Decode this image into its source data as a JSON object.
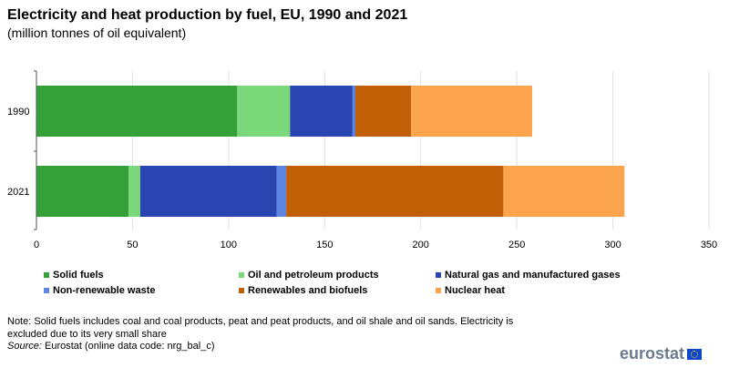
{
  "title": "Electricity and heat production by fuel, EU, 1990 and 2021",
  "subtitle": "(million tonnes of oil equivalent)",
  "chart_data": {
    "type": "bar",
    "orientation": "horizontal",
    "stacked": true,
    "categories": [
      "1990",
      "2021"
    ],
    "series": [
      {
        "name": "Solid fuels",
        "color": "#35a038",
        "values": [
          104.5,
          48
        ]
      },
      {
        "name": "Oil and petroleum products",
        "color": "#7bd87a",
        "values": [
          27.5,
          6
        ]
      },
      {
        "name": "Natural gas and manufactured gases",
        "color": "#2845b0",
        "values": [
          32.5,
          71
        ]
      },
      {
        "name": "Non-renewable waste",
        "color": "#5b85e0",
        "values": [
          1.5,
          5
        ]
      },
      {
        "name": "Renewables and biofuels",
        "color": "#c05f06",
        "values": [
          29,
          113
        ]
      },
      {
        "name": "Nuclear heat",
        "color": "#fca34d",
        "values": [
          63,
          63
        ]
      }
    ],
    "xlim": [
      0,
      350
    ],
    "xticks": [
      "0",
      "50",
      "100",
      "150",
      "200",
      "250",
      "300",
      "350"
    ],
    "grid": true,
    "legend_position": "bottom"
  },
  "note": "Note: Solid fuels includes coal and coal products, peat and peat products, and oil shale and oil sands. Electricity is excluded due to its very small share",
  "source_label": "Source:",
  "source_text": "Eurostat (online data code: nrg_bal_c)",
  "logo": "eurostat"
}
